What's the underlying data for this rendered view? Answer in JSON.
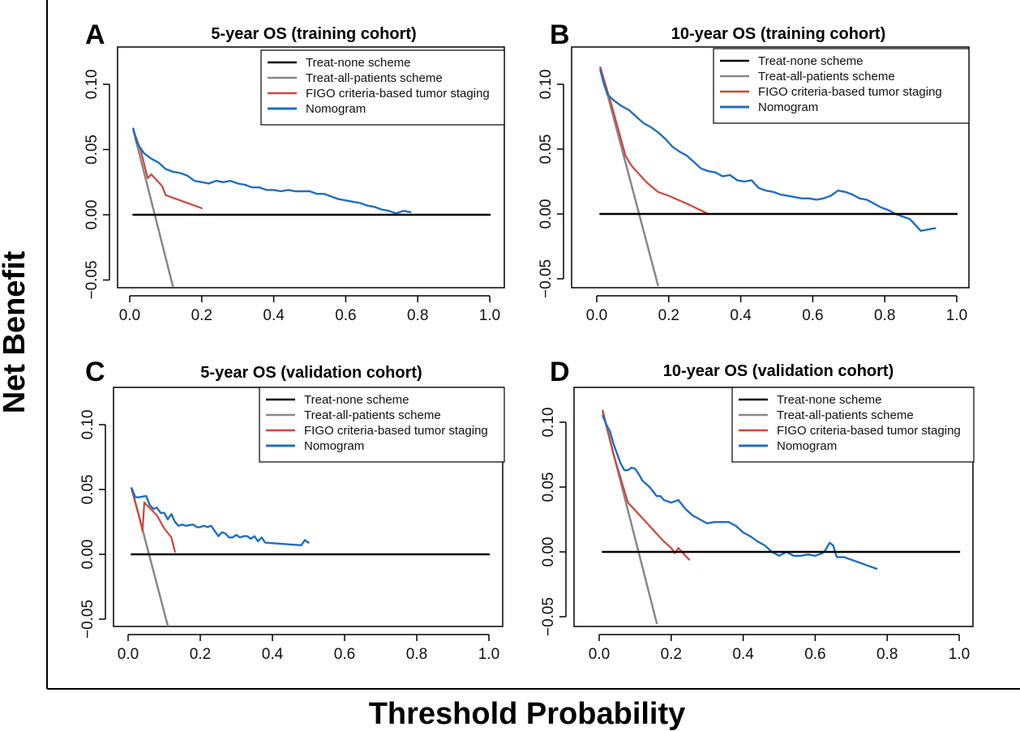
{
  "figure": {
    "ylabel": "Net Benefit",
    "xlabel": "Threshold Probability",
    "colors": {
      "none": "#000000",
      "all": "#888888",
      "figo": "#d0463c",
      "nomogram": "#1f6fbf"
    }
  },
  "chart_data": [
    {
      "type": "line",
      "panel": "A",
      "title": "5-year OS (training cohort)",
      "xlim": [
        0,
        1
      ],
      "ylim": [
        -0.05,
        0.1
      ],
      "xticks": [
        "0.0",
        "0.2",
        "0.4",
        "0.6",
        "0.8",
        "1.0"
      ],
      "yticks": [
        "−0.05",
        "0.00",
        "0.05",
        "0.10"
      ],
      "legend": [
        "Treat-none scheme",
        "Treat-all-patients scheme",
        "FIGO criteria-based tumor staging",
        "Nomogram"
      ],
      "series": [
        {
          "name": "Treat-none scheme",
          "x": [
            0.01,
            1.0
          ],
          "y": [
            0,
            0
          ]
        },
        {
          "name": "Treat-all-patients scheme",
          "x": [
            0.01,
            0.12
          ],
          "y": [
            0.065,
            -0.055
          ]
        },
        {
          "name": "FIGO criteria-based tumor staging",
          "x": [
            0.01,
            0.03,
            0.05,
            0.06,
            0.09,
            0.1,
            0.2
          ],
          "y": [
            0.065,
            0.05,
            0.028,
            0.031,
            0.022,
            0.015,
            0.005
          ]
        },
        {
          "name": "Nomogram",
          "x": [
            0.01,
            0.02,
            0.04,
            0.06,
            0.08,
            0.1,
            0.12,
            0.14,
            0.16,
            0.18,
            0.2,
            0.22,
            0.24,
            0.26,
            0.28,
            0.3,
            0.32,
            0.34,
            0.36,
            0.38,
            0.4,
            0.42,
            0.44,
            0.46,
            0.48,
            0.5,
            0.52,
            0.54,
            0.56,
            0.58,
            0.6,
            0.62,
            0.64,
            0.66,
            0.68,
            0.7,
            0.72,
            0.74,
            0.76,
            0.78
          ],
          "y": [
            0.066,
            0.055,
            0.047,
            0.043,
            0.04,
            0.035,
            0.033,
            0.032,
            0.03,
            0.026,
            0.025,
            0.024,
            0.026,
            0.025,
            0.026,
            0.024,
            0.023,
            0.021,
            0.021,
            0.019,
            0.019,
            0.018,
            0.019,
            0.018,
            0.018,
            0.018,
            0.016,
            0.016,
            0.014,
            0.012,
            0.011,
            0.01,
            0.009,
            0.007,
            0.006,
            0.004,
            0.003,
            0.001,
            0.003,
            0.002
          ]
        }
      ]
    },
    {
      "type": "line",
      "panel": "B",
      "title": "10-year OS (training cohort)",
      "xlim": [
        0,
        1
      ],
      "ylim": [
        -0.05,
        0.1
      ],
      "xticks": [
        "0.0",
        "0.2",
        "0.4",
        "0.6",
        "0.8",
        "1.0"
      ],
      "yticks": [
        "−0.05",
        "0.00",
        "0.05",
        "0.10"
      ],
      "legend": [
        "Treat-none scheme",
        "Treat-all-patients scheme",
        "FIGO criteria-based tumor staging",
        "Nomogram"
      ],
      "series": [
        {
          "name": "Treat-none scheme",
          "x": [
            0.01,
            1.0
          ],
          "y": [
            0,
            0
          ]
        },
        {
          "name": "Treat-all-patients scheme",
          "x": [
            0.01,
            0.17
          ],
          "y": [
            0.113,
            -0.055
          ]
        },
        {
          "name": "FIGO criteria-based tumor staging",
          "x": [
            0.01,
            0.04,
            0.08,
            0.09,
            0.1,
            0.12,
            0.14,
            0.17,
            0.2,
            0.25,
            0.31
          ],
          "y": [
            0.113,
            0.085,
            0.045,
            0.04,
            0.036,
            0.03,
            0.024,
            0.017,
            0.014,
            0.008,
            0.0
          ]
        },
        {
          "name": "Nomogram",
          "x": [
            0.01,
            0.02,
            0.03,
            0.05,
            0.07,
            0.09,
            0.11,
            0.13,
            0.15,
            0.17,
            0.19,
            0.21,
            0.23,
            0.25,
            0.27,
            0.29,
            0.31,
            0.33,
            0.35,
            0.37,
            0.39,
            0.41,
            0.43,
            0.45,
            0.47,
            0.49,
            0.51,
            0.53,
            0.55,
            0.57,
            0.59,
            0.61,
            0.63,
            0.65,
            0.67,
            0.69,
            0.71,
            0.73,
            0.75,
            0.77,
            0.79,
            0.81,
            0.83,
            0.85,
            0.87,
            0.89,
            0.9,
            0.92,
            0.94
          ],
          "y": [
            0.111,
            0.1,
            0.092,
            0.087,
            0.083,
            0.08,
            0.075,
            0.07,
            0.067,
            0.063,
            0.058,
            0.052,
            0.048,
            0.045,
            0.04,
            0.035,
            0.033,
            0.032,
            0.029,
            0.03,
            0.026,
            0.025,
            0.026,
            0.02,
            0.018,
            0.017,
            0.015,
            0.014,
            0.013,
            0.012,
            0.012,
            0.011,
            0.012,
            0.014,
            0.018,
            0.017,
            0.015,
            0.012,
            0.011,
            0.008,
            0.005,
            0.003,
            0.0,
            -0.002,
            -0.004,
            -0.01,
            -0.013,
            -0.012,
            -0.011
          ]
        }
      ]
    },
    {
      "type": "line",
      "panel": "C",
      "title": "5-year OS (validation cohort)",
      "xlim": [
        0,
        1
      ],
      "ylim": [
        -0.05,
        0.1
      ],
      "xticks": [
        "0.0",
        "0.2",
        "0.4",
        "0.6",
        "0.8",
        "1.0"
      ],
      "yticks": [
        "−0.05",
        "0.00",
        "0.05",
        "0.10"
      ],
      "legend": [
        "Treat-none scheme",
        "Treat-all-patients scheme",
        "FIGO criteria-based tumor staging",
        "Nomogram"
      ],
      "series": [
        {
          "name": "Treat-none scheme",
          "x": [
            0.01,
            1.0
          ],
          "y": [
            0,
            0
          ]
        },
        {
          "name": "Treat-all-patients scheme",
          "x": [
            0.01,
            0.11
          ],
          "y": [
            0.051,
            -0.055
          ]
        },
        {
          "name": "FIGO criteria-based tumor staging",
          "x": [
            0.01,
            0.03,
            0.04,
            0.045,
            0.08,
            0.1,
            0.12,
            0.13
          ],
          "y": [
            0.05,
            0.03,
            0.018,
            0.04,
            0.03,
            0.02,
            0.013,
            0.002
          ]
        },
        {
          "name": "Nomogram",
          "x": [
            0.01,
            0.02,
            0.03,
            0.05,
            0.06,
            0.07,
            0.08,
            0.09,
            0.1,
            0.11,
            0.12,
            0.13,
            0.14,
            0.15,
            0.16,
            0.18,
            0.19,
            0.2,
            0.21,
            0.22,
            0.23,
            0.25,
            0.26,
            0.27,
            0.28,
            0.29,
            0.3,
            0.31,
            0.32,
            0.33,
            0.34,
            0.35,
            0.36,
            0.37,
            0.38,
            0.48,
            0.49,
            0.5
          ],
          "y": [
            0.051,
            0.044,
            0.044,
            0.045,
            0.038,
            0.035,
            0.036,
            0.032,
            0.032,
            0.027,
            0.031,
            0.025,
            0.022,
            0.023,
            0.022,
            0.023,
            0.021,
            0.021,
            0.022,
            0.021,
            0.022,
            0.014,
            0.017,
            0.016,
            0.013,
            0.013,
            0.015,
            0.013,
            0.014,
            0.014,
            0.012,
            0.014,
            0.01,
            0.013,
            0.009,
            0.007,
            0.011,
            0.009
          ]
        }
      ]
    },
    {
      "type": "line",
      "panel": "D",
      "title": "10-year OS (validation cohort)",
      "xlim": [
        0,
        1
      ],
      "ylim": [
        -0.05,
        0.1
      ],
      "xticks": [
        "0.0",
        "0.2",
        "0.4",
        "0.6",
        "0.8",
        "1.0"
      ],
      "yticks": [
        "−0.05",
        "0.00",
        "0.05",
        "0.10"
      ],
      "legend": [
        "Treat-none scheme",
        "Treat-all-patients scheme",
        "FIGO criteria-based tumor staging",
        "Nomogram"
      ],
      "series": [
        {
          "name": "Treat-none scheme",
          "x": [
            0.01,
            1.0
          ],
          "y": [
            0,
            0
          ]
        },
        {
          "name": "Treat-all-patients scheme",
          "x": [
            0.01,
            0.16
          ],
          "y": [
            0.108,
            -0.055
          ]
        },
        {
          "name": "FIGO criteria-based tumor staging",
          "x": [
            0.01,
            0.04,
            0.08,
            0.1,
            0.12,
            0.14,
            0.16,
            0.18,
            0.2,
            0.21,
            0.22,
            0.23,
            0.25
          ],
          "y": [
            0.109,
            0.075,
            0.038,
            0.032,
            0.026,
            0.02,
            0.014,
            0.008,
            0.003,
            -0.001,
            0.003,
            0.0,
            -0.006
          ]
        },
        {
          "name": "Nomogram",
          "x": [
            0.01,
            0.02,
            0.03,
            0.04,
            0.06,
            0.07,
            0.08,
            0.09,
            0.1,
            0.11,
            0.12,
            0.14,
            0.16,
            0.17,
            0.18,
            0.2,
            0.22,
            0.24,
            0.26,
            0.28,
            0.3,
            0.32,
            0.34,
            0.36,
            0.38,
            0.4,
            0.42,
            0.44,
            0.46,
            0.48,
            0.5,
            0.52,
            0.54,
            0.56,
            0.58,
            0.6,
            0.62,
            0.63,
            0.64,
            0.65,
            0.66,
            0.68,
            0.7,
            0.72,
            0.74,
            0.77
          ],
          "y": [
            0.105,
            0.098,
            0.093,
            0.083,
            0.068,
            0.063,
            0.063,
            0.065,
            0.064,
            0.06,
            0.055,
            0.05,
            0.043,
            0.043,
            0.04,
            0.038,
            0.04,
            0.033,
            0.028,
            0.025,
            0.022,
            0.023,
            0.023,
            0.023,
            0.02,
            0.015,
            0.012,
            0.008,
            0.005,
            0.0,
            -0.003,
            0.0,
            -0.003,
            -0.003,
            -0.002,
            -0.003,
            -0.001,
            0.002,
            0.007,
            0.005,
            -0.004,
            -0.004,
            -0.006,
            -0.008,
            -0.01,
            -0.013
          ]
        }
      ]
    }
  ]
}
